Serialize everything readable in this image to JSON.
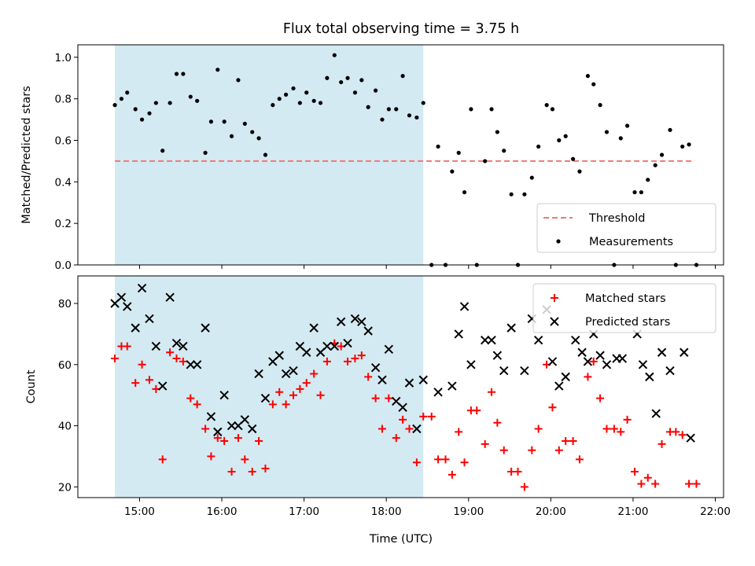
{
  "chart_data": [
    {
      "type": "scatter",
      "panel": "top",
      "title": "Flux total observing time = 3.75 h",
      "xlabel": "",
      "ylabel": "Matched/Predicted stars",
      "ylim": [
        0,
        1.06
      ],
      "xlim": [
        14.25,
        22.1
      ],
      "yticks": [
        "0.0",
        "0.2",
        "0.4",
        "0.6",
        "0.8",
        "1.0"
      ],
      "shaded_span": {
        "from": 14.7,
        "to": 18.45,
        "color": "#d4eaf2"
      },
      "legend": {
        "position": "lower right",
        "entries": [
          "Threshold",
          "Measurements"
        ]
      },
      "series": [
        {
          "name": "Threshold",
          "style": "dashed-line",
          "color": "#f07878",
          "points": [
            [
              14.7,
              0.5
            ],
            [
              21.75,
              0.5
            ]
          ]
        },
        {
          "name": "Measurements",
          "style": "dot",
          "color": "#000000",
          "points": [
            [
              14.7,
              0.77
            ],
            [
              14.78,
              0.8
            ],
            [
              14.85,
              0.83
            ],
            [
              14.95,
              0.75
            ],
            [
              15.03,
              0.7
            ],
            [
              15.12,
              0.73
            ],
            [
              15.2,
              0.78
            ],
            [
              15.28,
              0.55
            ],
            [
              15.37,
              0.78
            ],
            [
              15.45,
              0.92
            ],
            [
              15.53,
              0.92
            ],
            [
              15.62,
              0.81
            ],
            [
              15.7,
              0.79
            ],
            [
              15.8,
              0.54
            ],
            [
              15.87,
              0.69
            ],
            [
              15.95,
              0.94
            ],
            [
              16.03,
              0.69
            ],
            [
              16.12,
              0.62
            ],
            [
              16.2,
              0.89
            ],
            [
              16.28,
              0.68
            ],
            [
              16.37,
              0.64
            ],
            [
              16.45,
              0.61
            ],
            [
              16.53,
              0.53
            ],
            [
              16.62,
              0.77
            ],
            [
              16.7,
              0.8
            ],
            [
              16.78,
              0.82
            ],
            [
              16.87,
              0.85
            ],
            [
              16.95,
              0.78
            ],
            [
              17.03,
              0.83
            ],
            [
              17.12,
              0.79
            ],
            [
              17.2,
              0.78
            ],
            [
              17.28,
              0.9
            ],
            [
              17.37,
              1.01
            ],
            [
              17.45,
              0.88
            ],
            [
              17.53,
              0.9
            ],
            [
              17.62,
              0.83
            ],
            [
              17.7,
              0.89
            ],
            [
              17.78,
              0.76
            ],
            [
              17.87,
              0.84
            ],
            [
              17.95,
              0.7
            ],
            [
              18.03,
              0.75
            ],
            [
              18.12,
              0.75
            ],
            [
              18.2,
              0.91
            ],
            [
              18.28,
              0.72
            ],
            [
              18.37,
              0.71
            ],
            [
              18.45,
              0.78
            ],
            [
              18.55,
              0.0
            ],
            [
              18.63,
              0.57
            ],
            [
              18.72,
              0.0
            ],
            [
              18.8,
              0.45
            ],
            [
              18.88,
              0.54
            ],
            [
              18.95,
              0.35
            ],
            [
              19.03,
              0.75
            ],
            [
              19.1,
              0.0
            ],
            [
              19.2,
              0.5
            ],
            [
              19.28,
              0.75
            ],
            [
              19.35,
              0.64
            ],
            [
              19.43,
              0.55
            ],
            [
              19.52,
              0.34
            ],
            [
              19.6,
              0.0
            ],
            [
              19.68,
              0.34
            ],
            [
              19.77,
              0.42
            ],
            [
              19.85,
              0.57
            ],
            [
              19.95,
              0.77
            ],
            [
              20.02,
              0.75
            ],
            [
              20.1,
              0.6
            ],
            [
              20.18,
              0.62
            ],
            [
              20.27,
              0.51
            ],
            [
              20.35,
              0.45
            ],
            [
              20.45,
              0.91
            ],
            [
              20.52,
              0.87
            ],
            [
              20.6,
              0.77
            ],
            [
              20.68,
              0.64
            ],
            [
              20.77,
              0.0
            ],
            [
              20.85,
              0.61
            ],
            [
              20.93,
              0.67
            ],
            [
              21.02,
              0.35
            ],
            [
              21.1,
              0.35
            ],
            [
              21.18,
              0.41
            ],
            [
              21.27,
              0.48
            ],
            [
              21.35,
              0.53
            ],
            [
              21.45,
              0.65
            ],
            [
              21.52,
              0.0
            ],
            [
              21.6,
              0.57
            ],
            [
              21.68,
              0.58
            ],
            [
              21.77,
              0.0
            ]
          ]
        }
      ]
    },
    {
      "type": "scatter",
      "panel": "bottom",
      "title": "",
      "xlabel": "Time (UTC)",
      "ylabel": "Count",
      "ylim": [
        16.5,
        89
      ],
      "xlim": [
        14.25,
        22.1
      ],
      "yticks": [
        "20",
        "40",
        "60",
        "80"
      ],
      "xticks": [
        "15:00",
        "16:00",
        "17:00",
        "18:00",
        "19:00",
        "20:00",
        "21:00",
        "22:00"
      ],
      "shaded_span": {
        "from": 14.7,
        "to": 18.45,
        "color": "#d4eaf2"
      },
      "legend": {
        "position": "upper right",
        "entries": [
          "Matched stars",
          "Predicted stars"
        ]
      },
      "series": [
        {
          "name": "Matched stars",
          "style": "plus",
          "color": "#ff0000",
          "points": [
            [
              14.7,
              62
            ],
            [
              14.78,
              66
            ],
            [
              14.85,
              66
            ],
            [
              14.95,
              54
            ],
            [
              15.03,
              60
            ],
            [
              15.12,
              55
            ],
            [
              15.2,
              52
            ],
            [
              15.28,
              29
            ],
            [
              15.37,
              64
            ],
            [
              15.45,
              62
            ],
            [
              15.53,
              61
            ],
            [
              15.62,
              49
            ],
            [
              15.7,
              47
            ],
            [
              15.8,
              39
            ],
            [
              15.87,
              30
            ],
            [
              15.95,
              36
            ],
            [
              16.03,
              35
            ],
            [
              16.12,
              25
            ],
            [
              16.2,
              36
            ],
            [
              16.28,
              29
            ],
            [
              16.37,
              25
            ],
            [
              16.45,
              35
            ],
            [
              16.53,
              26
            ],
            [
              16.62,
              47
            ],
            [
              16.7,
              51
            ],
            [
              16.78,
              47
            ],
            [
              16.87,
              50
            ],
            [
              16.95,
              52
            ],
            [
              17.03,
              54
            ],
            [
              17.12,
              57
            ],
            [
              17.2,
              50
            ],
            [
              17.28,
              61
            ],
            [
              17.37,
              67
            ],
            [
              17.45,
              66
            ],
            [
              17.53,
              61
            ],
            [
              17.62,
              62
            ],
            [
              17.7,
              63
            ],
            [
              17.78,
              56
            ],
            [
              17.87,
              49
            ],
            [
              17.95,
              39
            ],
            [
              18.03,
              49
            ],
            [
              18.12,
              36
            ],
            [
              18.2,
              42
            ],
            [
              18.28,
              39
            ],
            [
              18.37,
              28
            ],
            [
              18.45,
              43
            ],
            [
              18.55,
              43
            ],
            [
              18.63,
              29
            ],
            [
              18.72,
              29
            ],
            [
              18.8,
              24
            ],
            [
              18.88,
              38
            ],
            [
              18.95,
              28
            ],
            [
              19.03,
              45
            ],
            [
              19.1,
              45
            ],
            [
              19.2,
              34
            ],
            [
              19.28,
              51
            ],
            [
              19.35,
              41
            ],
            [
              19.43,
              32
            ],
            [
              19.52,
              25
            ],
            [
              19.6,
              25
            ],
            [
              19.68,
              20
            ],
            [
              19.77,
              32
            ],
            [
              19.85,
              39
            ],
            [
              19.95,
              60
            ],
            [
              20.02,
              46
            ],
            [
              20.1,
              32
            ],
            [
              20.18,
              35
            ],
            [
              20.27,
              35
            ],
            [
              20.35,
              29
            ],
            [
              20.45,
              56
            ],
            [
              20.52,
              61
            ],
            [
              20.6,
              49
            ],
            [
              20.68,
              39
            ],
            [
              20.77,
              39
            ],
            [
              20.85,
              38
            ],
            [
              20.93,
              42
            ],
            [
              21.02,
              25
            ],
            [
              21.1,
              21
            ],
            [
              21.18,
              23
            ],
            [
              21.27,
              21
            ],
            [
              21.35,
              34
            ],
            [
              21.45,
              38
            ],
            [
              21.52,
              38
            ],
            [
              21.6,
              37
            ],
            [
              21.68,
              21
            ],
            [
              21.77,
              21
            ]
          ]
        },
        {
          "name": "Predicted stars",
          "style": "x",
          "color": "#000000",
          "points": [
            [
              14.7,
              80
            ],
            [
              14.78,
              82
            ],
            [
              14.85,
              79
            ],
            [
              14.95,
              72
            ],
            [
              15.03,
              85
            ],
            [
              15.12,
              75
            ],
            [
              15.2,
              66
            ],
            [
              15.28,
              53
            ],
            [
              15.37,
              82
            ],
            [
              15.45,
              67
            ],
            [
              15.53,
              66
            ],
            [
              15.62,
              60
            ],
            [
              15.7,
              60
            ],
            [
              15.8,
              72
            ],
            [
              15.87,
              43
            ],
            [
              15.95,
              38
            ],
            [
              16.03,
              50
            ],
            [
              16.12,
              40
            ],
            [
              16.2,
              40
            ],
            [
              16.28,
              42
            ],
            [
              16.37,
              39
            ],
            [
              16.45,
              57
            ],
            [
              16.53,
              49
            ],
            [
              16.62,
              61
            ],
            [
              16.7,
              63
            ],
            [
              16.78,
              57
            ],
            [
              16.87,
              58
            ],
            [
              16.95,
              66
            ],
            [
              17.03,
              64
            ],
            [
              17.12,
              72
            ],
            [
              17.2,
              64
            ],
            [
              17.28,
              66
            ],
            [
              17.37,
              66
            ],
            [
              17.45,
              74
            ],
            [
              17.53,
              67
            ],
            [
              17.62,
              75
            ],
            [
              17.7,
              74
            ],
            [
              17.78,
              71
            ],
            [
              17.87,
              59
            ],
            [
              17.95,
              55
            ],
            [
              18.03,
              65
            ],
            [
              18.12,
              48
            ],
            [
              18.2,
              46
            ],
            [
              18.28,
              54
            ],
            [
              18.37,
              39
            ],
            [
              18.45,
              55
            ],
            [
              18.63,
              51
            ],
            [
              18.8,
              53
            ],
            [
              18.88,
              70
            ],
            [
              18.95,
              79
            ],
            [
              19.03,
              60
            ],
            [
              19.2,
              68
            ],
            [
              19.28,
              68
            ],
            [
              19.35,
              63
            ],
            [
              19.43,
              58
            ],
            [
              19.52,
              72
            ],
            [
              19.68,
              58
            ],
            [
              19.77,
              75
            ],
            [
              19.85,
              68
            ],
            [
              19.95,
              78
            ],
            [
              20.02,
              61
            ],
            [
              20.1,
              53
            ],
            [
              20.18,
              56
            ],
            [
              20.3,
              68
            ],
            [
              20.38,
              64
            ],
            [
              20.45,
              61
            ],
            [
              20.52,
              70
            ],
            [
              20.6,
              63
            ],
            [
              20.68,
              60
            ],
            [
              20.8,
              62
            ],
            [
              20.87,
              62
            ],
            [
              21.05,
              70
            ],
            [
              21.12,
              60
            ],
            [
              21.2,
              56
            ],
            [
              21.28,
              44
            ],
            [
              21.35,
              64
            ],
            [
              21.45,
              58
            ],
            [
              21.62,
              64
            ],
            [
              21.7,
              36
            ]
          ]
        }
      ]
    }
  ]
}
